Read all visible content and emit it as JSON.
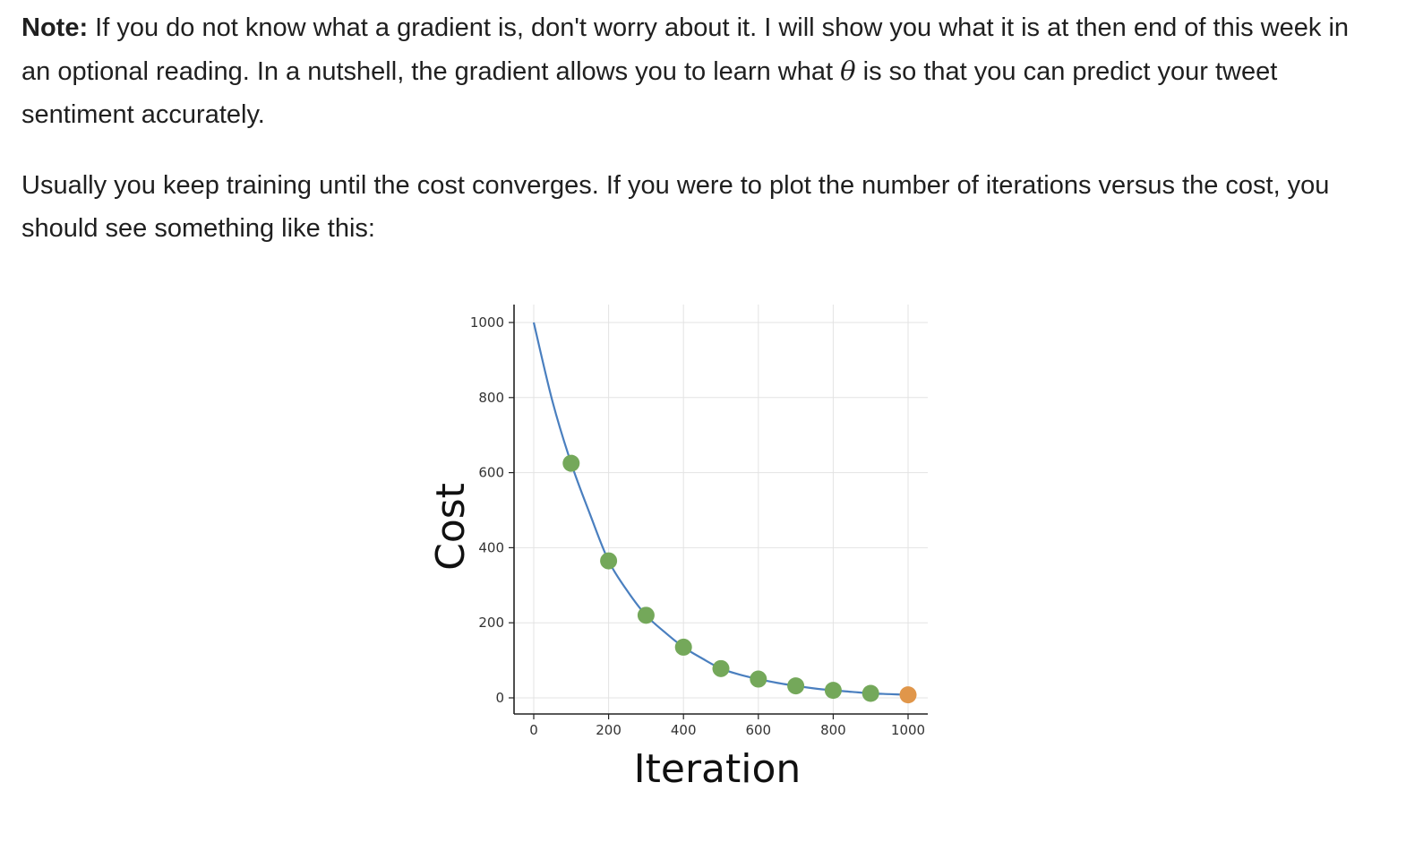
{
  "note": {
    "label": "Note:",
    "text_before_theta": " If you do not know what a gradient is, don't worry about it. I will show you what it is at then end of this week in an optional reading. In a nutshell, the gradient allows you to learn what ",
    "theta": "θ",
    "text_after_theta": " is so that you can predict your tweet sentiment accurately."
  },
  "paragraph2": "Usually you keep training until the cost converges. If you were to plot the number of iterations versus the cost, you should see something like this:",
  "colors": {
    "curve": "#4a7fbf",
    "point": "#74a85a",
    "final_point": "#e0964a",
    "grid": "#e3e3e3",
    "axis": "#222222"
  },
  "chart_data": {
    "type": "line",
    "title": "",
    "xlabel": "Iteration",
    "ylabel": "Cost",
    "xlim": [
      0,
      1000
    ],
    "ylim": [
      0,
      1000
    ],
    "grid": true,
    "x_ticks": [
      0,
      200,
      400,
      600,
      800,
      1000
    ],
    "y_ticks": [
      0,
      200,
      400,
      600,
      800,
      1000
    ],
    "x_tick_labels": [
      "0",
      "200",
      "400",
      "600",
      "800",
      "1000"
    ],
    "y_tick_labels": [
      "0",
      "200",
      "400",
      "600",
      "800",
      "1000"
    ],
    "curve": {
      "x": [
        0,
        50,
        100,
        150,
        200,
        250,
        300,
        350,
        400,
        450,
        500,
        550,
        600,
        650,
        700,
        750,
        800,
        850,
        900,
        950,
        1000
      ],
      "y": [
        1000,
        790,
        625,
        490,
        365,
        285,
        220,
        175,
        135,
        105,
        78,
        62,
        50,
        40,
        32,
        25,
        20,
        16,
        12,
        10,
        8
      ]
    },
    "points": {
      "x": [
        100,
        200,
        300,
        400,
        500,
        600,
        700,
        800,
        900
      ],
      "y": [
        625,
        365,
        220,
        135,
        78,
        50,
        32,
        20,
        12
      ]
    },
    "final_point": {
      "x": 1000,
      "y": 8
    }
  }
}
